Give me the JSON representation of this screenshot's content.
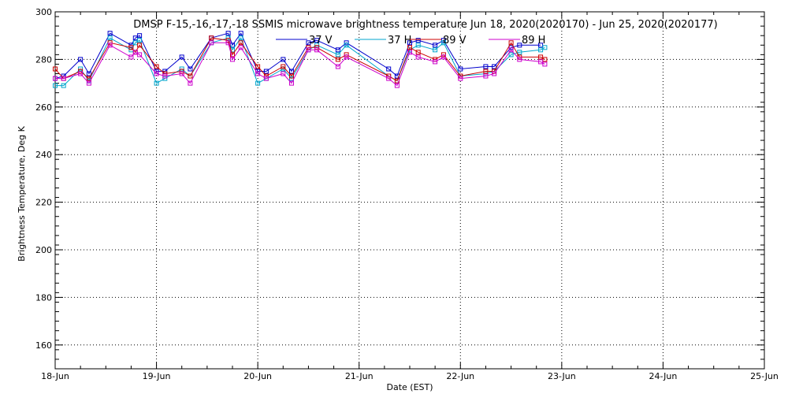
{
  "chart_data": {
    "type": "line",
    "title": "DMSP F-15,-16,-17,-18 SSMIS microwave brightness temperature Jun 18, 2020(2020170) - Jun 25, 2020(2020177)",
    "xlabel": "Date (EST)",
    "ylabel": "Brightness Temperature, Deg K",
    "xlim": [
      "2020-06-18",
      "2020-06-25"
    ],
    "ylim": [
      150,
      300
    ],
    "x_ticks": [
      "18-Jun",
      "19-Jun",
      "20-Jun",
      "21-Jun",
      "22-Jun",
      "23-Jun",
      "24-Jun",
      "25-Jun"
    ],
    "y_ticks": [
      160,
      180,
      200,
      220,
      240,
      260,
      280,
      300
    ],
    "grid": true,
    "legend_placement": "top",
    "series": [
      {
        "name": "37 V",
        "color": "#0000cc",
        "x": [
          "2020-06-18 00:00",
          "2020-06-18 02:00",
          "2020-06-18 06:00",
          "2020-06-18 08:00",
          "2020-06-18 13:00",
          "2020-06-18 18:00",
          "2020-06-18 19:00",
          "2020-06-18 20:00",
          "2020-06-19 00:00",
          "2020-06-19 02:00",
          "2020-06-19 06:00",
          "2020-06-19 08:00",
          "2020-06-19 13:00",
          "2020-06-19 17:00",
          "2020-06-19 18:00",
          "2020-06-19 20:00",
          "2020-06-20 00:00",
          "2020-06-20 02:00",
          "2020-06-20 06:00",
          "2020-06-20 08:00",
          "2020-06-20 12:00",
          "2020-06-20 14:00",
          "2020-06-20 19:00",
          "2020-06-20 21:00",
          "2020-06-21 07:00",
          "2020-06-21 09:00",
          "2020-06-21 12:00",
          "2020-06-21 14:00",
          "2020-06-21 18:00",
          "2020-06-21 20:00",
          "2020-06-22 00:00",
          "2020-06-22 06:00",
          "2020-06-22 08:00",
          "2020-06-22 12:00",
          "2020-06-22 14:00",
          "2020-06-22 19:00"
        ],
        "values": [
          272,
          273,
          280,
          274,
          291,
          286,
          289,
          290,
          275,
          275,
          281,
          276,
          289,
          291,
          286,
          291,
          275,
          275,
          280,
          275,
          287,
          288,
          284,
          287,
          276,
          273,
          287,
          288,
          286,
          288,
          276,
          277,
          277,
          285,
          286,
          286
        ]
      },
      {
        "name": "37 H",
        "color": "#00a6cc",
        "x": [
          "2020-06-18 00:00",
          "2020-06-18 02:00",
          "2020-06-18 06:00",
          "2020-06-18 08:00",
          "2020-06-18 13:00",
          "2020-06-18 18:00",
          "2020-06-18 19:00",
          "2020-06-18 20:00",
          "2020-06-19 00:00",
          "2020-06-19 02:00",
          "2020-06-19 06:00",
          "2020-06-19 08:00",
          "2020-06-19 13:00",
          "2020-06-19 17:00",
          "2020-06-19 18:00",
          "2020-06-19 20:00",
          "2020-06-20 00:00",
          "2020-06-20 02:00",
          "2020-06-20 06:00",
          "2020-06-20 08:00",
          "2020-06-20 12:00",
          "2020-06-20 14:00",
          "2020-06-20 19:00",
          "2020-06-20 21:00",
          "2020-06-21 07:00",
          "2020-06-21 09:00",
          "2020-06-21 12:00",
          "2020-06-21 14:00",
          "2020-06-21 18:00",
          "2020-06-21 20:00",
          "2020-06-22 00:00",
          "2020-06-22 06:00",
          "2020-06-22 08:00",
          "2020-06-22 12:00",
          "2020-06-22 14:00",
          "2020-06-22 19:00",
          "2020-06-22 20:00"
        ],
        "values": [
          269,
          269,
          276,
          271,
          289,
          284,
          287,
          288,
          270,
          272,
          276,
          273,
          287,
          289,
          284,
          289,
          270,
          272,
          276,
          272,
          284,
          286,
          282,
          286,
          273,
          271,
          284,
          286,
          284,
          287,
          273,
          274,
          275,
          282,
          283,
          284,
          285
        ]
      },
      {
        "name": "89 V",
        "color": "#cc0000",
        "x": [
          "2020-06-18 00:00",
          "2020-06-18 02:00",
          "2020-06-18 06:00",
          "2020-06-18 08:00",
          "2020-06-18 13:00",
          "2020-06-18 18:00",
          "2020-06-18 19:00",
          "2020-06-18 20:00",
          "2020-06-19 00:00",
          "2020-06-19 02:00",
          "2020-06-19 06:00",
          "2020-06-19 08:00",
          "2020-06-19 13:00",
          "2020-06-19 17:00",
          "2020-06-19 18:00",
          "2020-06-19 20:00",
          "2020-06-20 00:00",
          "2020-06-20 02:00",
          "2020-06-20 06:00",
          "2020-06-20 08:00",
          "2020-06-20 12:00",
          "2020-06-20 14:00",
          "2020-06-20 19:00",
          "2020-06-20 21:00",
          "2020-06-21 07:00",
          "2020-06-21 09:00",
          "2020-06-21 12:00",
          "2020-06-21 14:00",
          "2020-06-21 18:00",
          "2020-06-21 20:00",
          "2020-06-22 00:00",
          "2020-06-22 06:00",
          "2020-06-22 08:00",
          "2020-06-22 12:00",
          "2020-06-22 14:00",
          "2020-06-22 19:00",
          "2020-06-22 20:00"
        ],
        "values": [
          276,
          272,
          275,
          272,
          287,
          285,
          283,
          286,
          277,
          274,
          275,
          273,
          289,
          288,
          282,
          287,
          277,
          273,
          277,
          273,
          285,
          285,
          280,
          282,
          273,
          271,
          285,
          283,
          280,
          282,
          273,
          275,
          275,
          287,
          281,
          281,
          280
        ]
      },
      {
        "name": "89 H",
        "color": "#cc00cc",
        "x": [
          "2020-06-18 00:00",
          "2020-06-18 02:00",
          "2020-06-18 06:00",
          "2020-06-18 08:00",
          "2020-06-18 13:00",
          "2020-06-18 18:00",
          "2020-06-18 19:00",
          "2020-06-18 20:00",
          "2020-06-19 00:00",
          "2020-06-19 02:00",
          "2020-06-19 06:00",
          "2020-06-19 08:00",
          "2020-06-19 13:00",
          "2020-06-19 17:00",
          "2020-06-19 18:00",
          "2020-06-19 20:00",
          "2020-06-20 00:00",
          "2020-06-20 02:00",
          "2020-06-20 06:00",
          "2020-06-20 08:00",
          "2020-06-20 12:00",
          "2020-06-20 14:00",
          "2020-06-20 19:00",
          "2020-06-20 21:00",
          "2020-06-21 07:00",
          "2020-06-21 09:00",
          "2020-06-21 12:00",
          "2020-06-21 14:00",
          "2020-06-21 18:00",
          "2020-06-21 20:00",
          "2020-06-22 00:00",
          "2020-06-22 06:00",
          "2020-06-22 08:00",
          "2020-06-22 12:00",
          "2020-06-22 14:00",
          "2020-06-22 19:00",
          "2020-06-22 20:00"
        ],
        "values": [
          272,
          272,
          274,
          270,
          286,
          281,
          283,
          282,
          274,
          273,
          274,
          270,
          287,
          287,
          280,
          285,
          274,
          272,
          274,
          270,
          284,
          284,
          277,
          281,
          272,
          269,
          283,
          281,
          279,
          281,
          272,
          273,
          274,
          284,
          280,
          279,
          278
        ]
      }
    ]
  }
}
